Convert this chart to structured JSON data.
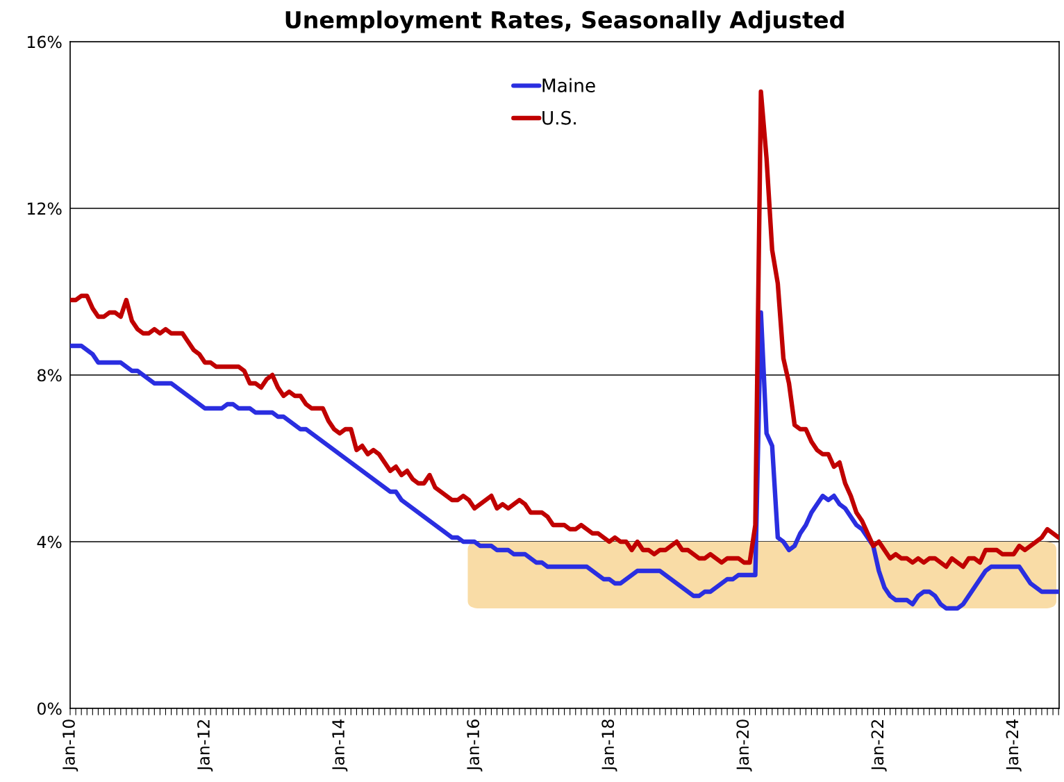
{
  "chart_data": {
    "type": "line",
    "title": "Unemployment Rates, Seasonally Adjusted",
    "categories": [
      "Jan-10",
      null,
      null,
      null,
      null,
      null,
      null,
      null,
      null,
      null,
      null,
      null,
      null,
      null,
      null,
      null,
      null,
      null,
      null,
      null,
      null,
      null,
      null,
      null,
      "Jan-12",
      null,
      null,
      null,
      null,
      null,
      null,
      null,
      null,
      null,
      null,
      null,
      null,
      null,
      null,
      null,
      null,
      null,
      null,
      null,
      null,
      null,
      null,
      null,
      "Jan-14",
      null,
      null,
      null,
      null,
      null,
      null,
      null,
      null,
      null,
      null,
      null,
      null,
      null,
      null,
      null,
      null,
      null,
      null,
      null,
      null,
      null,
      null,
      null,
      "Jan-16",
      null,
      null,
      null,
      null,
      null,
      null,
      null,
      null,
      null,
      null,
      null,
      null,
      null,
      null,
      null,
      null,
      null,
      null,
      null,
      null,
      null,
      null,
      null,
      "Jan-18",
      null,
      null,
      null,
      null,
      null,
      null,
      null,
      null,
      null,
      null,
      null,
      null,
      null,
      null,
      null,
      null,
      null,
      null,
      null,
      null,
      null,
      null,
      null,
      "Jan-20",
      null,
      null,
      null,
      null,
      null,
      null,
      null,
      null,
      null,
      null,
      null,
      null,
      null,
      null,
      null,
      null,
      null,
      null,
      null,
      null,
      null,
      null,
      null,
      "Jan-22",
      null,
      null,
      null,
      null,
      null,
      null,
      null,
      null,
      null,
      null,
      null,
      null,
      null,
      null,
      null,
      null,
      null,
      null,
      null,
      null,
      null,
      null,
      null,
      "Jan-24",
      null,
      null,
      null,
      null,
      null,
      null,
      null,
      null
    ],
    "series": [
      {
        "name": "Maine",
        "color": "#2a2ee0",
        "values": [
          8.7,
          8.7,
          8.7,
          8.6,
          8.5,
          8.3,
          8.3,
          8.3,
          8.3,
          8.3,
          8.2,
          8.1,
          8.1,
          8.0,
          7.9,
          7.8,
          7.8,
          7.8,
          7.8,
          7.7,
          7.6,
          7.5,
          7.4,
          7.3,
          7.2,
          7.2,
          7.2,
          7.2,
          7.3,
          7.3,
          7.2,
          7.2,
          7.2,
          7.1,
          7.1,
          7.1,
          7.1,
          7.0,
          7.0,
          6.9,
          6.8,
          6.7,
          6.7,
          6.6,
          6.5,
          6.4,
          6.3,
          6.2,
          6.1,
          6.0,
          5.9,
          5.8,
          5.7,
          5.6,
          5.5,
          5.4,
          5.3,
          5.2,
          5.2,
          5.0,
          4.9,
          4.8,
          4.7,
          4.6,
          4.5,
          4.4,
          4.3,
          4.2,
          4.1,
          4.1,
          4.0,
          4.0,
          4.0,
          3.9,
          3.9,
          3.9,
          3.8,
          3.8,
          3.8,
          3.7,
          3.7,
          3.7,
          3.6,
          3.5,
          3.5,
          3.4,
          3.4,
          3.4,
          3.4,
          3.4,
          3.4,
          3.4,
          3.4,
          3.3,
          3.2,
          3.1,
          3.1,
          3.0,
          3.0,
          3.1,
          3.2,
          3.3,
          3.3,
          3.3,
          3.3,
          3.3,
          3.2,
          3.1,
          3.0,
          2.9,
          2.8,
          2.7,
          2.7,
          2.8,
          2.8,
          2.9,
          3.0,
          3.1,
          3.1,
          3.2,
          3.2,
          3.2,
          3.2,
          9.5,
          6.6,
          6.3,
          4.1,
          4.0,
          3.8,
          3.9,
          4.2,
          4.4,
          4.7,
          4.9,
          5.1,
          5.0,
          5.1,
          4.9,
          4.8,
          4.6,
          4.4,
          4.3,
          4.1,
          3.9,
          3.3,
          2.9,
          2.7,
          2.6,
          2.6,
          2.6,
          2.5,
          2.7,
          2.8,
          2.8,
          2.7,
          2.5,
          2.4,
          2.4,
          2.4,
          2.5,
          2.7,
          2.9,
          3.1,
          3.3,
          3.4,
          3.4,
          3.4,
          3.4,
          3.4,
          3.4,
          3.2,
          3.0,
          2.9,
          2.8,
          2.8,
          2.8,
          2.8
        ]
      },
      {
        "name": "U.S.",
        "color": "#c00000",
        "values": [
          9.8,
          9.8,
          9.9,
          9.9,
          9.6,
          9.4,
          9.4,
          9.5,
          9.5,
          9.4,
          9.8,
          9.3,
          9.1,
          9.0,
          9.0,
          9.1,
          9.0,
          9.1,
          9.0,
          9.0,
          9.0,
          8.8,
          8.6,
          8.5,
          8.3,
          8.3,
          8.2,
          8.2,
          8.2,
          8.2,
          8.2,
          8.1,
          7.8,
          7.8,
          7.7,
          7.9,
          8.0,
          7.7,
          7.5,
          7.6,
          7.5,
          7.5,
          7.3,
          7.2,
          7.2,
          7.2,
          6.9,
          6.7,
          6.6,
          6.7,
          6.7,
          6.2,
          6.3,
          6.1,
          6.2,
          6.1,
          5.9,
          5.7,
          5.8,
          5.6,
          5.7,
          5.5,
          5.4,
          5.4,
          5.6,
          5.3,
          5.2,
          5.1,
          5.0,
          5.0,
          5.1,
          5.0,
          4.8,
          4.9,
          5.0,
          5.1,
          4.8,
          4.9,
          4.8,
          4.9,
          5.0,
          4.9,
          4.7,
          4.7,
          4.7,
          4.6,
          4.4,
          4.4,
          4.4,
          4.3,
          4.3,
          4.4,
          4.3,
          4.2,
          4.2,
          4.1,
          4.0,
          4.1,
          4.0,
          4.0,
          3.8,
          4.0,
          3.8,
          3.8,
          3.7,
          3.8,
          3.8,
          3.9,
          4.0,
          3.8,
          3.8,
          3.7,
          3.6,
          3.6,
          3.7,
          3.6,
          3.5,
          3.6,
          3.6,
          3.6,
          3.5,
          3.5,
          4.4,
          14.8,
          13.2,
          11.0,
          10.2,
          8.4,
          7.8,
          6.8,
          6.7,
          6.7,
          6.4,
          6.2,
          6.1,
          6.1,
          5.8,
          5.9,
          5.4,
          5.1,
          4.7,
          4.5,
          4.2,
          3.9,
          4.0,
          3.8,
          3.6,
          3.7,
          3.6,
          3.6,
          3.5,
          3.6,
          3.5,
          3.6,
          3.6,
          3.5,
          3.4,
          3.6,
          3.5,
          3.4,
          3.6,
          3.6,
          3.5,
          3.8,
          3.8,
          3.8,
          3.7,
          3.7,
          3.7,
          3.9,
          3.8,
          3.9,
          4.0,
          4.1,
          4.3,
          4.2,
          4.1
        ]
      }
    ],
    "ylim": [
      0,
      16
    ],
    "yticks": [
      {
        "value": 0,
        "label": "0%"
      },
      {
        "value": 4,
        "label": "4%"
      },
      {
        "value": 8,
        "label": "8%"
      },
      {
        "value": 12,
        "label": "12%"
      },
      {
        "value": 16,
        "label": "16%"
      }
    ],
    "bands": [
      {
        "axis": "y",
        "from": 2.4,
        "to": 4.0,
        "color": "#f9dca6"
      }
    ],
    "grid": "y",
    "legend": "top",
    "line_style": "solid",
    "marker": "none"
  }
}
